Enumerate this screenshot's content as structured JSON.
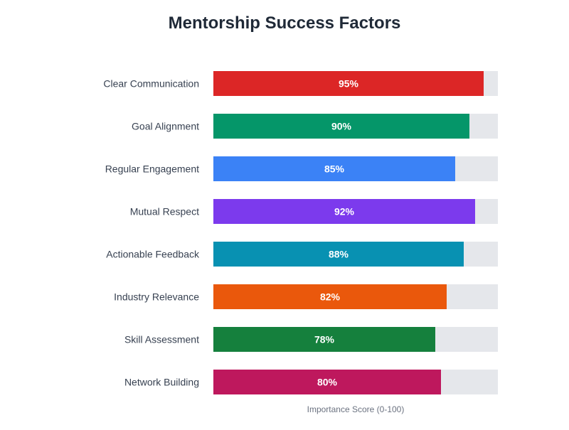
{
  "chart_data": {
    "type": "bar",
    "orientation": "horizontal",
    "title": "Mentorship Success Factors",
    "xlabel": "Importance Score (0-100)",
    "ylabel": "",
    "xlim": [
      0,
      100
    ],
    "categories": [
      "Clear Communication",
      "Goal Alignment",
      "Regular Engagement",
      "Mutual Respect",
      "Actionable Feedback",
      "Industry Relevance",
      "Skill Assessment",
      "Network Building"
    ],
    "values": [
      95,
      90,
      85,
      92,
      88,
      82,
      78,
      80
    ],
    "value_labels": [
      "95%",
      "90%",
      "85%",
      "92%",
      "88%",
      "82%",
      "78%",
      "80%"
    ],
    "bar_colors": [
      "#dc2626",
      "#059669",
      "#3b82f6",
      "#7c3aed",
      "#0891b2",
      "#ea580c",
      "#15803d",
      "#be185d"
    ],
    "track_color": "#e5e7eb",
    "grid": false,
    "legend": "none"
  }
}
